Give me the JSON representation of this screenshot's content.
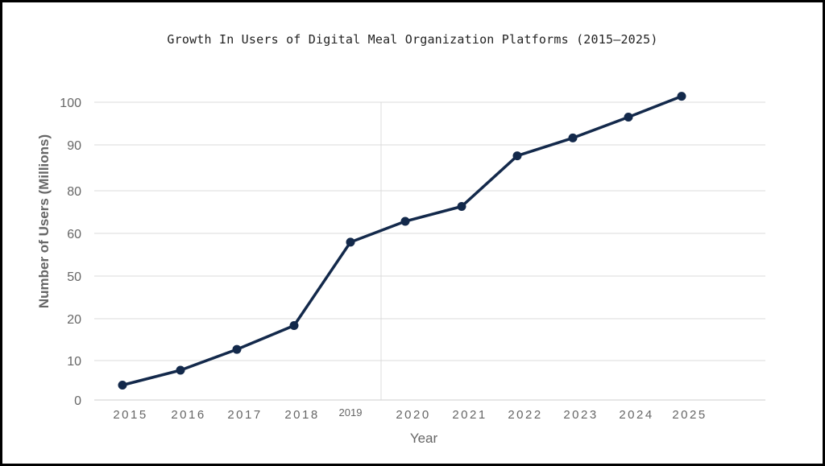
{
  "chart_data": {
    "type": "line",
    "title": "Growth In Users of Digital Meal Organization Platforms (2015–2025)",
    "xlabel": "Year",
    "ylabel": "Number of Users (Millions)",
    "categories": [
      "2015",
      "2016",
      "2017",
      "2018",
      "2019",
      "2020",
      "2021",
      "2022",
      "2023",
      "2024",
      "2025"
    ],
    "y_tick_labels": [
      "0",
      "10",
      "20",
      "50",
      "60",
      "80",
      "90",
      "100"
    ],
    "series": [
      {
        "values": [
          5,
          10,
          17,
          25,
          53,
          60,
          65,
          82,
          88,
          95,
          102
        ]
      }
    ],
    "grid": true,
    "line_color": "#13294b"
  }
}
